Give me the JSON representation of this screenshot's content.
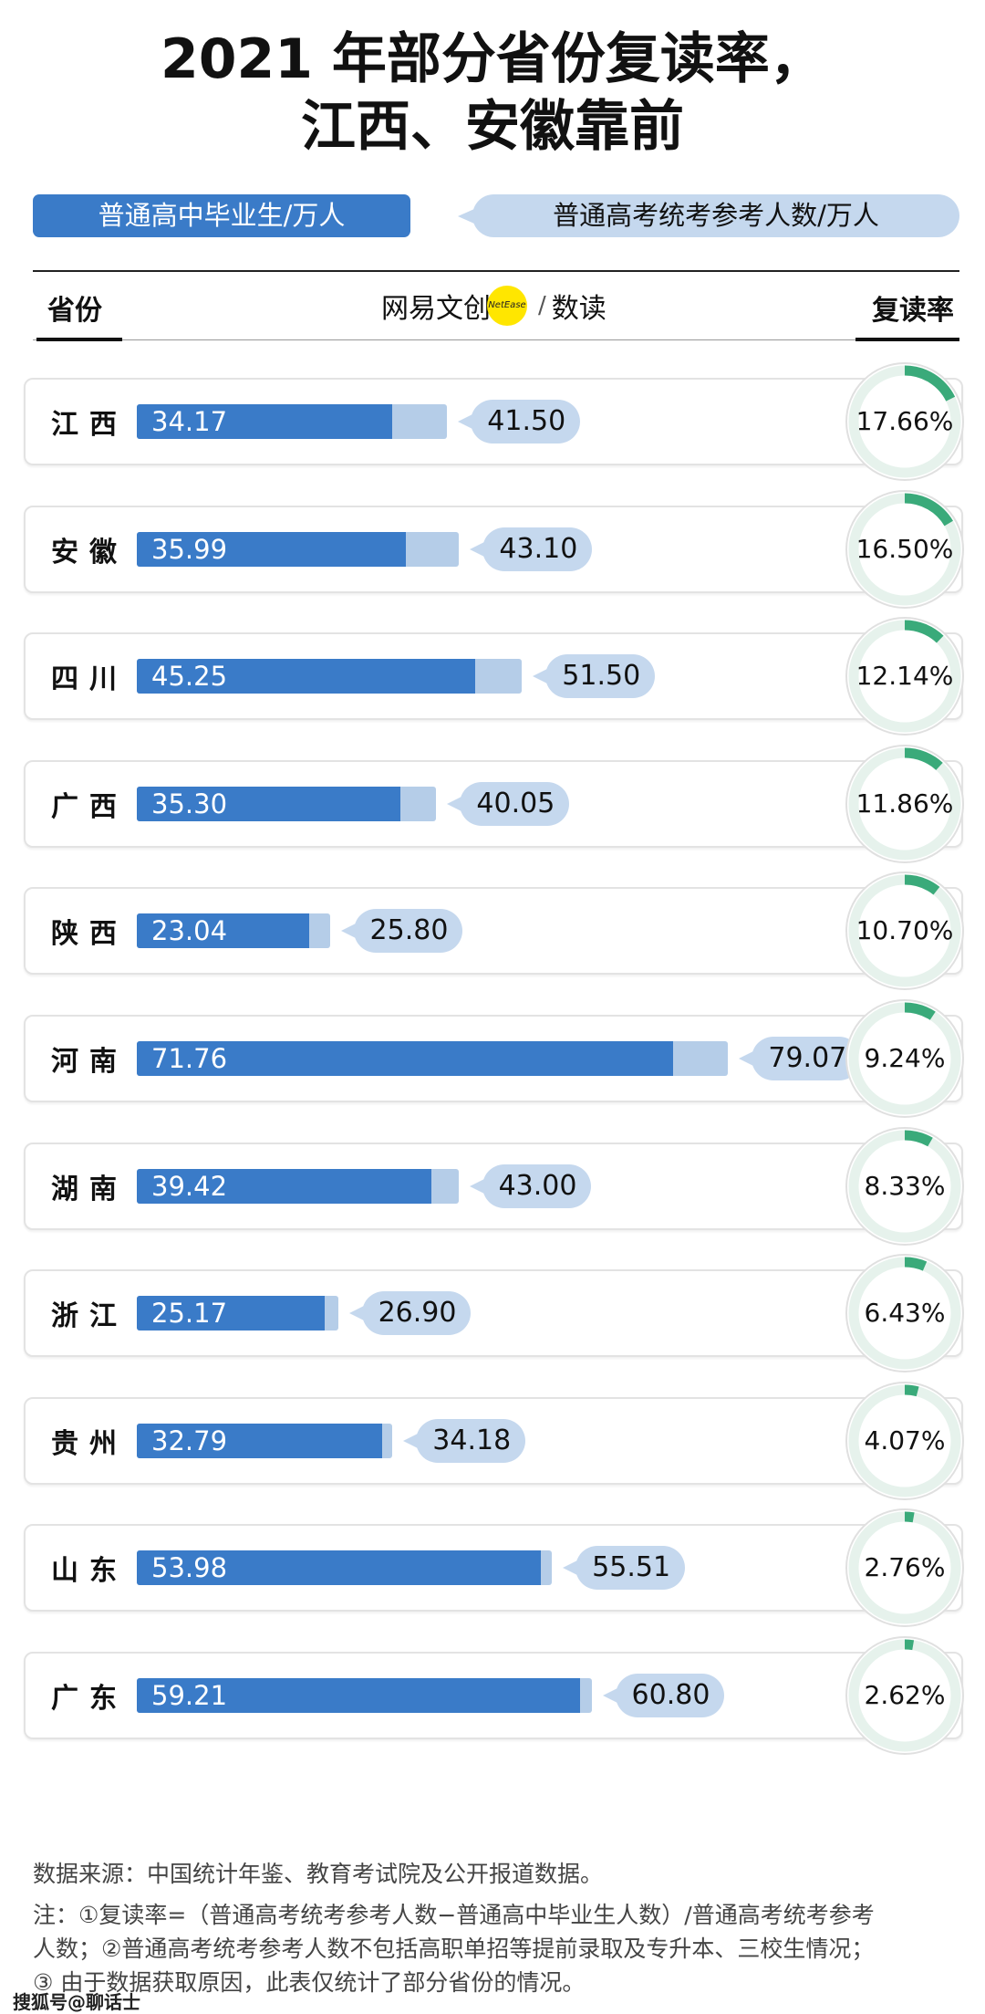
{
  "title_line1": "2021 年部分省份复读率，",
  "title_line2": "江西、安徽靠前",
  "legend": {
    "graduates": "普通高中毕业生/万人",
    "examinees": "普通高考统考参考人数/万人"
  },
  "header": {
    "province": "省份",
    "rate": "复读率",
    "brand_left": "网易文创",
    "brand_dot": "NetEase",
    "brand_slash": "/",
    "brand_right": "数读"
  },
  "colors": {
    "graduates": "#3a7bc8",
    "examinees": "#b5cde8",
    "rate_arc": "#3aaa7a",
    "rate_track": "#e6f2ec"
  },
  "chart_data": {
    "type": "bar",
    "orientation": "horizontal",
    "title": "2021 年部分省份复读率，江西、安徽靠前",
    "categories": [
      "江西",
      "安徽",
      "四川",
      "广西",
      "陕西",
      "河南",
      "湖南",
      "浙江",
      "贵州",
      "山东",
      "广东"
    ],
    "series": [
      {
        "name": "普通高中毕业生/万人",
        "values": [
          34.17,
          35.99,
          45.25,
          35.3,
          23.04,
          71.76,
          39.42,
          25.17,
          32.79,
          53.98,
          59.21
        ],
        "labels": [
          "34.17",
          "35.99",
          "45.25",
          "35.30",
          "23.04",
          "71.76",
          "39.42",
          "25.17",
          "32.79",
          "53.98",
          "59.21"
        ]
      },
      {
        "name": "普通高考统考参考人数/万人",
        "values": [
          41.5,
          43.1,
          51.5,
          40.05,
          25.8,
          79.07,
          43.0,
          26.9,
          34.18,
          55.51,
          60.8
        ],
        "labels": [
          "41.50",
          "43.10",
          "51.50",
          "40.05",
          "25.80",
          "79.07",
          "43.00",
          "26.90",
          "34.18",
          "55.51",
          "60.80"
        ]
      },
      {
        "name": "复读率",
        "values": [
          17.66,
          16.5,
          12.14,
          11.86,
          10.7,
          9.24,
          8.33,
          6.43,
          4.07,
          2.76,
          2.62
        ],
        "labels": [
          "17.66%",
          "16.50%",
          "12.14%",
          "11.86%",
          "10.70%",
          "9.24%",
          "8.33%",
          "6.43%",
          "4.07%",
          "2.76%",
          "2.62%"
        ]
      }
    ]
  },
  "footer": {
    "source": "数据来源：中国统计年鉴、教育考试院及公开报道数据。",
    "note_line1": "注：①复读率=（普通高考统考参考人数−普通高中毕业生人数）/普通高考统考参考",
    "note_line2": "人数；②普通高考统考参考人数不包括高职单招等提前录取及专升本、三校生情况；",
    "note_line3": "③ 由于数据获取原因，此表仅统计了部分省份的情况。",
    "watermark": "搜狐号@聊话士"
  }
}
